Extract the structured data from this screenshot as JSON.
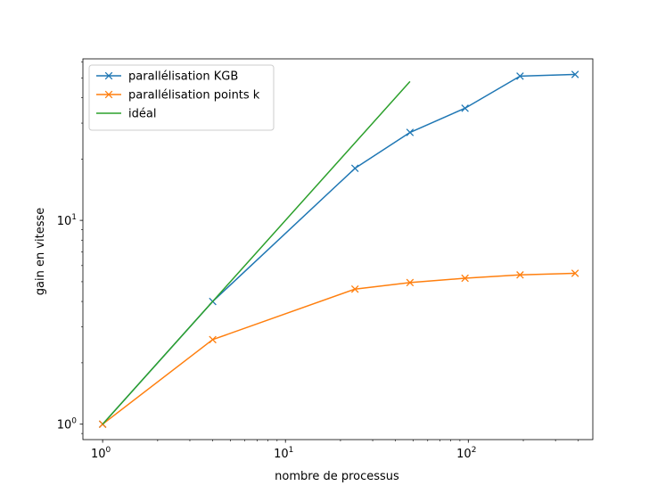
{
  "chart_data": {
    "type": "line",
    "title": "",
    "xlabel": "nombre de processus",
    "ylabel": "gain en vitesse",
    "xscale": "log",
    "yscale": "log",
    "xlim": [
      0.78,
      480
    ],
    "ylim": [
      0.84,
      62
    ],
    "xticks": [
      {
        "value": 1,
        "base": "10",
        "exp": "0"
      },
      {
        "value": 10,
        "base": "10",
        "exp": "1"
      },
      {
        "value": 100,
        "base": "10",
        "exp": "2"
      }
    ],
    "yticks": [
      {
        "value": 1,
        "base": "10",
        "exp": "0"
      },
      {
        "value": 10,
        "base": "10",
        "exp": "1"
      }
    ],
    "legend_position": "upper-left",
    "grid": false,
    "series": [
      {
        "name": "parallélisation KGB",
        "color": "#1f77b4",
        "marker": "x",
        "x": [
          1,
          4,
          24,
          48,
          96,
          192,
          384
        ],
        "y": [
          1,
          4,
          18,
          27,
          35.5,
          51,
          52
        ]
      },
      {
        "name": "parallélisation points k",
        "color": "#ff7f0e",
        "marker": "x",
        "x": [
          1,
          4,
          24,
          48,
          96,
          192,
          384
        ],
        "y": [
          1,
          2.6,
          4.6,
          4.95,
          5.2,
          5.4,
          5.5
        ]
      },
      {
        "name": "idéal",
        "color": "#2ca02c",
        "marker": "none",
        "x": [
          1,
          48
        ],
        "y": [
          1,
          48
        ]
      }
    ]
  }
}
